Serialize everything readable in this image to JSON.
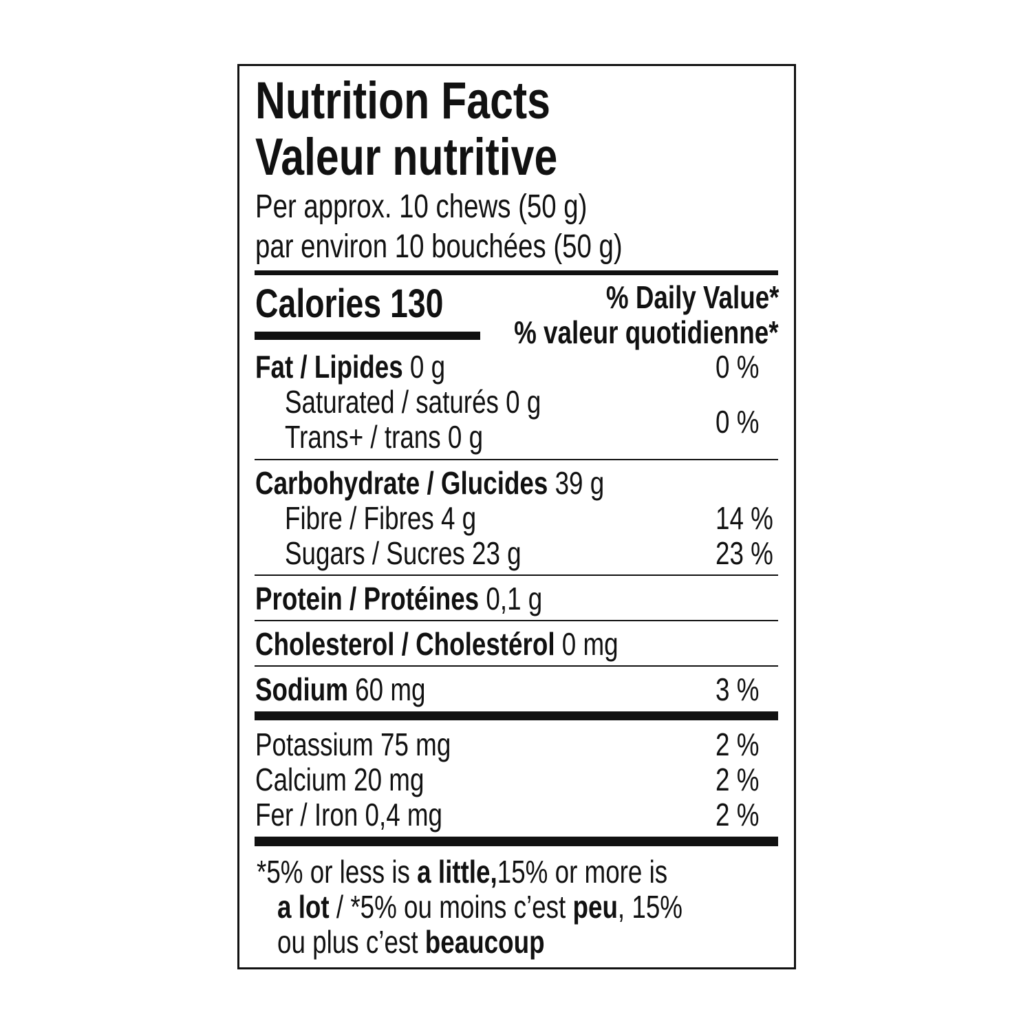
{
  "title_en": "Nutrition Facts",
  "title_fr": "Valeur nutritive",
  "serving_en": "Per approx. 10 chews (50 g)",
  "serving_fr": "par environ 10 bouchées (50 g)",
  "calories": {
    "label": "Calories",
    "value": "130"
  },
  "dv_header_en": "% Daily Value*",
  "dv_header_fr": "% valeur quotidienne*",
  "nutrients": {
    "fat": {
      "label": "Fat / Lipides",
      "amount": "0 g",
      "dv": "0 %"
    },
    "saturated": {
      "label": "Saturated / saturés 0 g"
    },
    "trans": {
      "label": "Trans+ / trans 0 g"
    },
    "sat_trans_dv": "0 %",
    "carbohydrate": {
      "label": "Carbohydrate / Glucides",
      "amount": "39 g"
    },
    "fibre": {
      "label": "Fibre / Fibres 4 g",
      "dv": "14 %"
    },
    "sugars": {
      "label": "Sugars / Sucres 23 g",
      "dv": "23 %"
    },
    "protein": {
      "label": "Protein / Protéines",
      "amount": "0,1 g"
    },
    "cholesterol": {
      "label": "Cholesterol / Cholestérol",
      "amount": "0 mg"
    },
    "sodium": {
      "label": "Sodium",
      "amount": "60 mg",
      "dv": "3 %"
    },
    "potassium": {
      "label": "Potassium 75 mg",
      "dv": "2 %"
    },
    "calcium": {
      "label": "Calcium 20 mg",
      "dv": "2 %"
    },
    "iron": {
      "label": "Fer / Iron 0,4 mg",
      "dv": "2 %"
    }
  },
  "footnote": {
    "p1": "*5% or less is ",
    "b1": "a little,",
    "p2": "15% or more is",
    "b2": "a lot",
    "p3": " / *5% ou moins c’est ",
    "b3": "peu",
    "p4": ", 15%",
    "p5": "ou plus c’est ",
    "b4": "beaucoup"
  }
}
